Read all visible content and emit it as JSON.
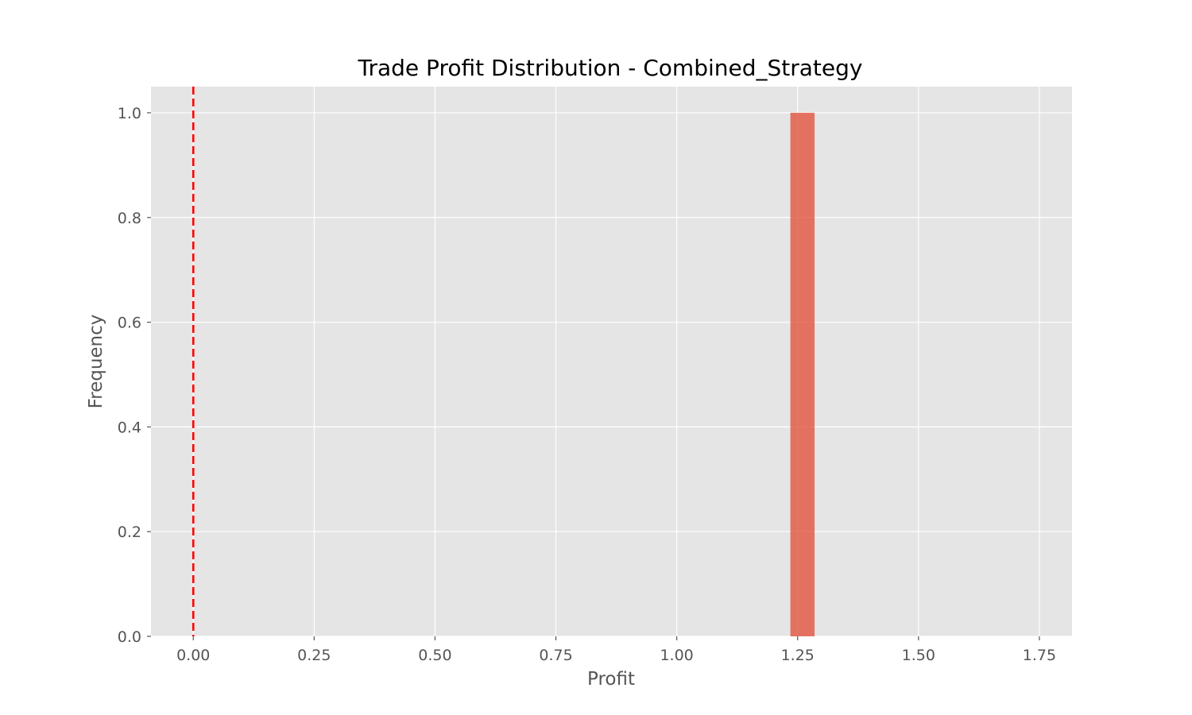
{
  "chart_data": {
    "type": "bar",
    "title": "Trade Profit Distribution - Combined_Strategy",
    "xlabel": "Profit",
    "ylabel": "Frequency",
    "xlim": [
      -0.0875,
      1.8175
    ],
    "ylim": [
      0.0,
      1.05
    ],
    "x_ticks": [
      0.0,
      0.25,
      0.5,
      0.75,
      1.0,
      1.25,
      1.5,
      1.75
    ],
    "x_tick_labels": [
      "0.00",
      "0.25",
      "0.50",
      "0.75",
      "1.00",
      "1.25",
      "1.50",
      "1.75"
    ],
    "y_ticks": [
      0.0,
      0.2,
      0.4,
      0.6,
      0.8,
      1.0
    ],
    "y_tick_labels": [
      "0.0",
      "0.2",
      "0.4",
      "0.6",
      "0.8",
      "1.0"
    ],
    "bins": [
      {
        "x0": 1.235,
        "x1": 1.285,
        "count": 1
      }
    ],
    "reference_line": {
      "x": 0.0,
      "style": "dashed"
    },
    "grid": true,
    "colors": {
      "background": "#e5e5e5",
      "grid": "#ffffff",
      "bar": "#e24a33",
      "bar_opacity": 0.75,
      "reference_line": "#ff0000"
    }
  }
}
